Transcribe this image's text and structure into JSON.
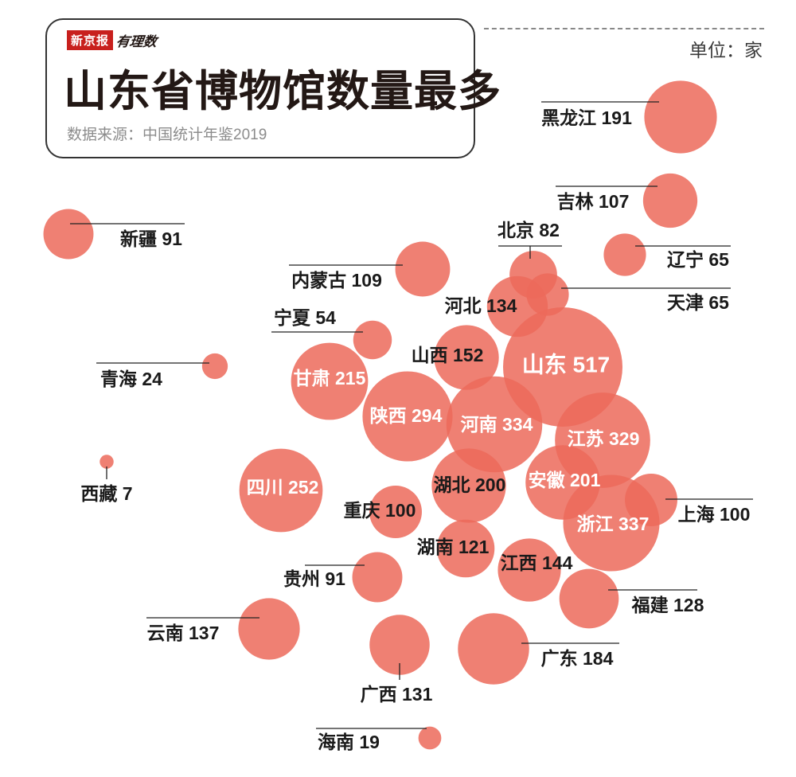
{
  "header": {
    "brand": "新京报",
    "brand_sub": "有理数",
    "title": "山东省博物馆数量最多",
    "source": "数据来源：中国统计年鉴2019",
    "unit": "单位：家"
  },
  "colors": {
    "bubble": "#ec6a5a",
    "label_dark": "#1a1a1a",
    "label_light": "#ffffff",
    "leader": "#222222"
  },
  "chart_data": {
    "type": "bubble",
    "unit": "单位：家",
    "points": [
      {
        "name": "黑龙江",
        "value": 191
      },
      {
        "name": "吉林",
        "value": 107
      },
      {
        "name": "新疆",
        "value": 91
      },
      {
        "name": "北京",
        "value": 82
      },
      {
        "name": "辽宁",
        "value": 65
      },
      {
        "name": "内蒙古",
        "value": 109
      },
      {
        "name": "天津",
        "value": 65
      },
      {
        "name": "河北",
        "value": 134
      },
      {
        "name": "宁夏",
        "value": 54
      },
      {
        "name": "山西",
        "value": 152
      },
      {
        "name": "青海",
        "value": 24
      },
      {
        "name": "山东",
        "value": 517
      },
      {
        "name": "甘肃",
        "value": 215
      },
      {
        "name": "陕西",
        "value": 294
      },
      {
        "name": "河南",
        "value": 334
      },
      {
        "name": "江苏",
        "value": 329
      },
      {
        "name": "西藏",
        "value": 7
      },
      {
        "name": "四川",
        "value": 252
      },
      {
        "name": "湖北",
        "value": 200
      },
      {
        "name": "安徽",
        "value": 201
      },
      {
        "name": "重庆",
        "value": 100
      },
      {
        "name": "上海",
        "value": 100
      },
      {
        "name": "浙江",
        "value": 337
      },
      {
        "name": "湖南",
        "value": 121
      },
      {
        "name": "江西",
        "value": 144
      },
      {
        "name": "贵州",
        "value": 91
      },
      {
        "name": "福建",
        "value": 128
      },
      {
        "name": "云南",
        "value": 137
      },
      {
        "name": "广东",
        "value": 184
      },
      {
        "name": "广西",
        "value": 131
      },
      {
        "name": "海南",
        "value": 19
      }
    ]
  }
}
